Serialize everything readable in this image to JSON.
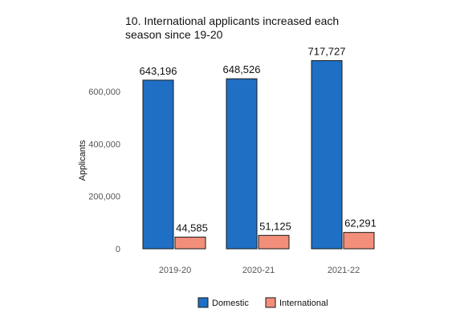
{
  "chart_data": {
    "type": "bar",
    "title": "10. International applicants increased each season since 19-20",
    "xlabel": "",
    "ylabel": "Applicants",
    "categories": [
      "2019-20",
      "2020-21",
      "2021-22"
    ],
    "series": [
      {
        "name": "Domestic",
        "color": "#1f6fc5",
        "values": [
          643196,
          648526,
          717727
        ],
        "labels": [
          "643,196",
          "648,526",
          "717,727"
        ]
      },
      {
        "name": "International",
        "color": "#f28e7a",
        "values": [
          44585,
          51125,
          62291
        ],
        "labels": [
          "44,585",
          "51,125",
          "62,291"
        ]
      }
    ],
    "ylim": [
      0,
      720000
    ],
    "yticks": [
      0,
      200000,
      400000,
      600000
    ],
    "yticklabels": [
      "0",
      "200,000",
      "400,000",
      "600,000"
    ],
    "grid": false,
    "legend": "bottom"
  }
}
